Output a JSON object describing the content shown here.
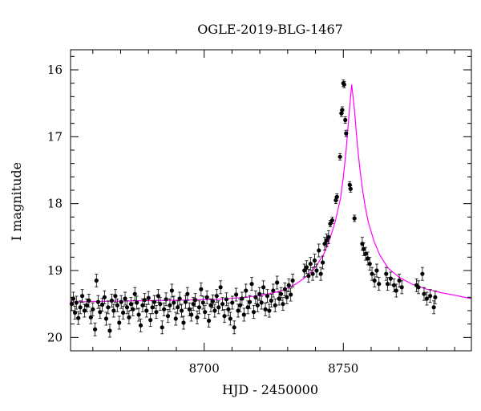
{
  "chart_data": {
    "type": "scatter",
    "title": "OGLE-2019-BLG-1467",
    "xlabel": "HJD - 2450000",
    "ylabel": "I magnitude",
    "xlim": [
      8652,
      8796
    ],
    "ylim": [
      20.2,
      15.7
    ],
    "y_inverted": true,
    "x_ticks": [
      8700,
      8750
    ],
    "y_ticks": [
      16,
      17,
      18,
      19,
      20
    ],
    "grid": false,
    "colors": {
      "points": "#000000",
      "model": "#ff00ff",
      "axes": "#000000"
    },
    "model": {
      "name": "",
      "x": [
        8652,
        8665,
        8680,
        8695,
        8705,
        8715,
        8722,
        8728,
        8733,
        8737,
        8740,
        8743,
        8745,
        8747,
        8749,
        8750,
        8751,
        8752,
        8753,
        8754,
        8755,
        8756,
        8757,
        8758,
        8759,
        8761,
        8763,
        8766,
        8770,
        8775,
        8780,
        8785,
        8790,
        8796
      ],
      "y": [
        19.47,
        19.46,
        19.45,
        19.44,
        19.43,
        19.4,
        19.36,
        19.3,
        19.2,
        19.08,
        18.95,
        18.75,
        18.55,
        18.28,
        17.92,
        17.6,
        17.2,
        16.7,
        16.22,
        16.6,
        17.1,
        17.5,
        17.82,
        18.08,
        18.28,
        18.56,
        18.76,
        18.96,
        19.1,
        19.21,
        19.28,
        19.33,
        19.37,
        19.42
      ]
    },
    "series": [
      {
        "name": "",
        "points": [
          [
            8652.4,
            19.5
          ],
          [
            8653.0,
            19.42
          ],
          [
            8653.6,
            19.63
          ],
          [
            8654.1,
            19.48
          ],
          [
            8654.8,
            19.71
          ],
          [
            8655.5,
            19.55
          ],
          [
            8656.2,
            19.38
          ],
          [
            8657.0,
            19.6
          ],
          [
            8657.8,
            19.52
          ],
          [
            8658.6,
            19.45
          ],
          [
            8659.3,
            19.7
          ],
          [
            8660.0,
            19.58
          ],
          [
            8660.8,
            19.88
          ],
          [
            8661.3,
            19.15
          ],
          [
            8661.9,
            19.47
          ],
          [
            8662.6,
            19.62
          ],
          [
            8663.4,
            19.51
          ],
          [
            8664.2,
            19.4
          ],
          [
            8664.8,
            19.72
          ],
          [
            8665.5,
            19.55
          ],
          [
            8666.1,
            19.9
          ],
          [
            8666.8,
            19.45
          ],
          [
            8667.5,
            19.6
          ],
          [
            8668.1,
            19.38
          ],
          [
            8668.8,
            19.52
          ],
          [
            8669.5,
            19.78
          ],
          [
            8670.2,
            19.47
          ],
          [
            8670.9,
            19.63
          ],
          [
            8671.6,
            19.42
          ],
          [
            8672.3,
            19.55
          ],
          [
            8673.0,
            19.7
          ],
          [
            8673.7,
            19.5
          ],
          [
            8674.4,
            19.58
          ],
          [
            8675.1,
            19.35
          ],
          [
            8675.8,
            19.48
          ],
          [
            8676.5,
            19.66
          ],
          [
            8677.2,
            19.82
          ],
          [
            8677.9,
            19.52
          ],
          [
            8678.6,
            19.44
          ],
          [
            8679.3,
            19.6
          ],
          [
            8680.0,
            19.41
          ],
          [
            8680.7,
            19.74
          ],
          [
            8681.4,
            19.55
          ],
          [
            8682.1,
            19.47
          ],
          [
            8682.8,
            19.62
          ],
          [
            8683.5,
            19.38
          ],
          [
            8684.2,
            19.5
          ],
          [
            8684.9,
            19.85
          ],
          [
            8685.6,
            19.58
          ],
          [
            8686.3,
            19.43
          ],
          [
            8687.0,
            19.68
          ],
          [
            8687.7,
            19.52
          ],
          [
            8688.4,
            19.3
          ],
          [
            8689.1,
            19.48
          ],
          [
            8689.8,
            19.72
          ],
          [
            8690.5,
            19.55
          ],
          [
            8691.2,
            19.42
          ],
          [
            8691.9,
            19.6
          ],
          [
            8692.6,
            19.78
          ],
          [
            8693.3,
            19.47
          ],
          [
            8694.0,
            19.35
          ],
          [
            8694.7,
            19.58
          ],
          [
            8695.4,
            19.66
          ],
          [
            8696.1,
            19.5
          ],
          [
            8696.8,
            19.44
          ],
          [
            8697.5,
            19.7
          ],
          [
            8698.2,
            19.55
          ],
          [
            8698.9,
            19.28
          ],
          [
            8699.6,
            19.48
          ],
          [
            8700.3,
            19.62
          ],
          [
            8701.0,
            19.4
          ],
          [
            8701.7,
            19.75
          ],
          [
            8702.4,
            19.52
          ],
          [
            8703.1,
            19.46
          ],
          [
            8703.8,
            19.6
          ],
          [
            8704.5,
            19.38
          ],
          [
            8705.2,
            19.55
          ],
          [
            8705.9,
            19.25
          ],
          [
            8706.6,
            19.5
          ],
          [
            8707.3,
            19.68
          ],
          [
            8708.0,
            19.43
          ],
          [
            8708.7,
            19.58
          ],
          [
            8709.4,
            19.72
          ],
          [
            8710.1,
            19.48
          ],
          [
            8710.8,
            19.85
          ],
          [
            8711.5,
            19.36
          ],
          [
            8712.2,
            19.6
          ],
          [
            8712.9,
            19.52
          ],
          [
            8713.6,
            19.42
          ],
          [
            8714.3,
            19.66
          ],
          [
            8715.0,
            19.3
          ],
          [
            8715.7,
            19.55
          ],
          [
            8716.4,
            19.47
          ],
          [
            8717.1,
            19.2
          ],
          [
            8717.8,
            19.62
          ],
          [
            8718.5,
            19.4
          ],
          [
            8719.2,
            19.52
          ],
          [
            8719.9,
            19.35
          ],
          [
            8720.6,
            19.48
          ],
          [
            8721.3,
            19.25
          ],
          [
            8722.0,
            19.58
          ],
          [
            8722.7,
            19.38
          ],
          [
            8723.4,
            19.6
          ],
          [
            8724.1,
            19.45
          ],
          [
            8724.8,
            19.3
          ],
          [
            8725.5,
            19.52
          ],
          [
            8726.2,
            19.18
          ],
          [
            8726.9,
            19.42
          ],
          [
            8727.6,
            19.35
          ],
          [
            8728.3,
            19.5
          ],
          [
            8729.0,
            19.28
          ],
          [
            8729.7,
            19.4
          ],
          [
            8730.4,
            19.22
          ],
          [
            8731.1,
            19.36
          ],
          [
            8731.8,
            19.15
          ],
          [
            8736.0,
            19.0
          ],
          [
            8736.8,
            18.95
          ],
          [
            8737.5,
            19.08
          ],
          [
            8738.2,
            18.9
          ],
          [
            8739.0,
            19.05
          ],
          [
            8739.7,
            18.85
          ],
          [
            8740.4,
            19.0
          ],
          [
            8741.2,
            18.7
          ],
          [
            8741.9,
            19.05
          ],
          [
            8742.6,
            18.88
          ],
          [
            8743.3,
            18.6
          ],
          [
            8744.0,
            18.55
          ],
          [
            8744.7,
            18.5
          ],
          [
            8745.3,
            18.3
          ],
          [
            8746.0,
            18.25
          ],
          [
            8747.3,
            17.95
          ],
          [
            8747.7,
            17.9
          ],
          [
            8748.8,
            17.3
          ],
          [
            8749.3,
            16.65
          ],
          [
            8749.6,
            16.6
          ],
          [
            8750.0,
            16.2
          ],
          [
            8750.3,
            16.22
          ],
          [
            8750.7,
            16.75
          ],
          [
            8751.0,
            16.95
          ],
          [
            8752.3,
            17.72
          ],
          [
            8752.6,
            17.78
          ],
          [
            8754.0,
            18.22
          ],
          [
            8756.8,
            18.6
          ],
          [
            8757.3,
            18.68
          ],
          [
            8758.0,
            18.75
          ],
          [
            8758.8,
            18.82
          ],
          [
            8759.5,
            18.9
          ],
          [
            8760.3,
            19.05
          ],
          [
            8761.2,
            19.15
          ],
          [
            8762.0,
            19.0
          ],
          [
            8762.8,
            19.2
          ],
          [
            8765.4,
            19.05
          ],
          [
            8765.9,
            19.2
          ],
          [
            8767.0,
            19.12
          ],
          [
            8768.2,
            19.22
          ],
          [
            8769.0,
            19.3
          ],
          [
            8770.1,
            19.15
          ],
          [
            8771.0,
            19.25
          ],
          [
            8776.3,
            19.22
          ],
          [
            8777.0,
            19.25
          ],
          [
            8778.4,
            19.05
          ],
          [
            8779.0,
            19.35
          ],
          [
            8780.0,
            19.42
          ],
          [
            8781.2,
            19.38
          ],
          [
            8782.5,
            19.55
          ],
          [
            8783.0,
            19.4
          ]
        ]
      }
    ]
  }
}
